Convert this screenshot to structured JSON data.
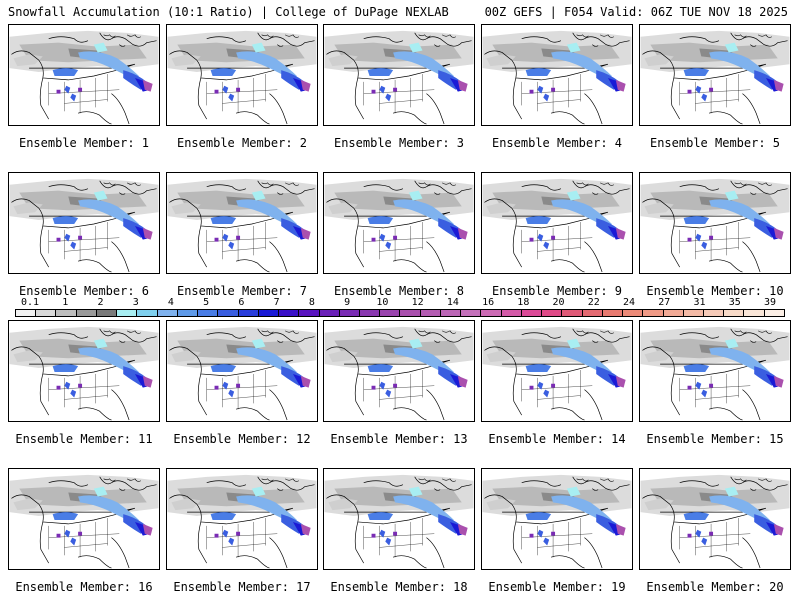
{
  "header": {
    "title_left": "Snowfall Accumulation (10:1 Ratio) | College of DuPage NEXLAB",
    "title_right": "00Z GEFS | F054 Valid: 06Z TUE NOV 18 2025"
  },
  "members": [
    "Ensemble Member: 1",
    "Ensemble Member: 2",
    "Ensemble Member: 3",
    "Ensemble Member: 4",
    "Ensemble Member: 5",
    "Ensemble Member: 6",
    "Ensemble Member: 7",
    "Ensemble Member: 8",
    "Ensemble Member: 9",
    "Ensemble Member: 10",
    "Ensemble Member: 11",
    "Ensemble Member: 12",
    "Ensemble Member: 13",
    "Ensemble Member: 14",
    "Ensemble Member: 15",
    "Ensemble Member: 16",
    "Ensemble Member: 17",
    "Ensemble Member: 18",
    "Ensemble Member: 19",
    "Ensemble Member: 20"
  ],
  "legend": {
    "ticks": [
      "0.1",
      "1",
      "2",
      "3",
      "4",
      "5",
      "6",
      "7",
      "8",
      "9",
      "10",
      "12",
      "14",
      "16",
      "18",
      "20",
      "22",
      "24",
      "27",
      "31",
      "35",
      "39"
    ],
    "colors": [
      "#f2f2f2",
      "#d9d9d9",
      "#bdbdbd",
      "#9a9a9a",
      "#7a7a7a",
      "#a8eef2",
      "#7fd0ee",
      "#7fb2ee",
      "#5f9ae8",
      "#4a7de6",
      "#3a5ee0",
      "#2a3edc",
      "#1a1ad6",
      "#3a10c8",
      "#5a14c0",
      "#6a20b8",
      "#7a2cb4",
      "#8a38b0",
      "#9a44ae",
      "#aa50ae",
      "#b45cb2",
      "#bc66b6",
      "#c470ba",
      "#cc6ab4",
      "#d45aa8",
      "#dc4a98",
      "#e04a88",
      "#e05a78",
      "#e46a72",
      "#e87a70",
      "#ec8a78",
      "#f09a86",
      "#f2aa96",
      "#f4baa6",
      "#f6cab8",
      "#f8dac8",
      "#fae6d8",
      "#fcefe6"
    ]
  }
}
